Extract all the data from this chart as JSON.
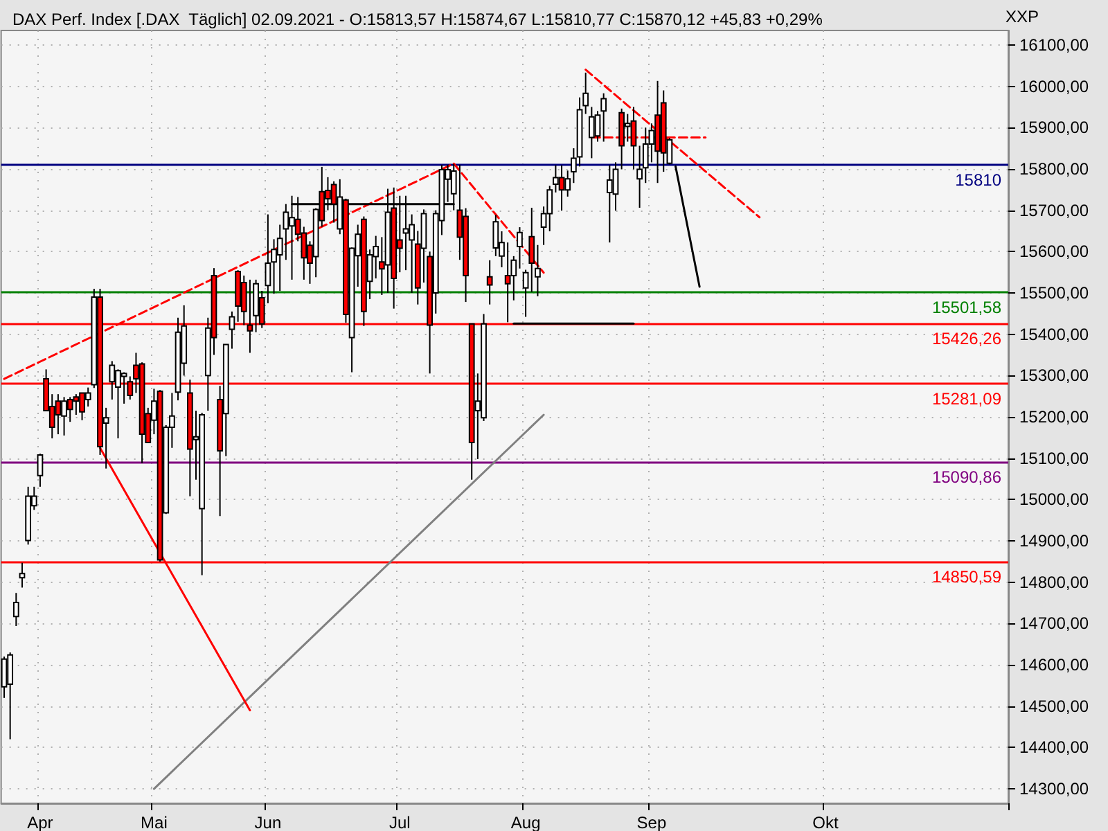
{
  "chart_data": {
    "type": "candlestick",
    "title": "DAX Perf. Index [.DAX  Täglich] 02.09.2021 - O:15813,57 H:15874,67 L:15810,77 C:15870,12 +45,83 +0,29%",
    "ylabel": "XXP",
    "categories": [
      null,
      null,
      null,
      null,
      null,
      null,
      "Apr",
      null,
      null,
      null,
      null,
      null,
      null,
      null,
      null,
      null,
      null,
      null,
      null,
      null,
      null,
      null,
      null,
      null,
      null,
      "Mai",
      null,
      null,
      null,
      null,
      null,
      null,
      null,
      null,
      null,
      null,
      null,
      null,
      null,
      null,
      null,
      null,
      null,
      null,
      "Jun",
      null,
      null,
      null,
      null,
      null,
      null,
      null,
      null,
      null,
      null,
      null,
      null,
      null,
      null,
      null,
      null,
      null,
      null,
      null,
      null,
      null,
      "Jul",
      null,
      null,
      null,
      null,
      null,
      null,
      null,
      null,
      null,
      null,
      null,
      null,
      null,
      null,
      null,
      null,
      null,
      null,
      null,
      null,
      "Aug",
      null,
      null,
      null,
      null,
      null,
      null,
      null,
      null,
      null,
      null,
      null,
      null,
      null,
      null,
      null,
      null,
      null,
      null,
      null,
      null,
      "Sep",
      null,
      null,
      null,
      null,
      null,
      null,
      null,
      null,
      null,
      null,
      null,
      null,
      null,
      null,
      null,
      null,
      null,
      null,
      null,
      null,
      null,
      null,
      null,
      null,
      null,
      null,
      null,
      null,
      "Okt",
      null,
      null,
      null,
      null,
      null,
      null,
      null,
      null,
      null,
      null,
      null,
      null,
      null,
      null,
      null,
      null,
      null,
      null,
      null,
      null,
      null,
      null,
      null,
      null,
      null,
      null,
      null,
      null,
      null,
      null
    ],
    "ohlc": [
      [
        14547,
        14620,
        14520,
        14614
      ],
      [
        14553,
        14630,
        14420,
        14624
      ],
      [
        14717,
        14774,
        14694,
        14751
      ],
      [
        14811,
        14847,
        14787,
        14821
      ],
      [
        14901,
        15031,
        14891,
        15008
      ],
      [
        14985,
        15031,
        14975,
        15008
      ],
      [
        15058,
        15111,
        15031,
        15108
      ],
      [
        15292,
        15315,
        15215,
        15215
      ],
      [
        15225,
        15255,
        15148,
        15175
      ],
      [
        15238,
        15255,
        15158,
        15205
      ],
      [
        15202,
        15248,
        15155,
        15238
      ],
      [
        15242,
        15248,
        15188,
        15218
      ],
      [
        15248,
        15255,
        15205,
        15238
      ],
      [
        15258,
        15258,
        15192,
        15212
      ],
      [
        15242,
        15271,
        15225,
        15258
      ],
      [
        15278,
        15510,
        15270,
        15490
      ],
      [
        15490,
        15510,
        15108,
        15128
      ],
      [
        15185,
        15222,
        15075,
        15198
      ],
      [
        15285,
        15335,
        15242,
        15325
      ],
      [
        15272,
        15315,
        15148,
        15312
      ],
      [
        15298,
        15308,
        15232,
        15305
      ],
      [
        15285,
        15298,
        15242,
        15252
      ],
      [
        15325,
        15355,
        15258,
        15292
      ],
      [
        15328,
        15332,
        15088,
        15158
      ],
      [
        15208,
        15222,
        15138,
        15138
      ],
      [
        15192,
        15268,
        15158,
        15238
      ],
      [
        15262,
        15265,
        14850,
        14854
      ],
      [
        14968,
        15180,
        14965,
        15175
      ],
      [
        15175,
        15258,
        15125,
        15202
      ],
      [
        15260,
        15440,
        15240,
        15405
      ],
      [
        15330,
        15470,
        15300,
        15420
      ],
      [
        15258,
        15290,
        15008,
        15122
      ],
      [
        15145,
        15215,
        15048,
        15152
      ],
      [
        14978,
        15210,
        14817,
        15205
      ],
      [
        15300,
        15440,
        15215,
        15415
      ],
      [
        15542,
        15560,
        15350,
        15392
      ],
      [
        15242,
        15275,
        14960,
        15118
      ],
      [
        15208,
        15375,
        15105,
        15375
      ],
      [
        15412,
        15455,
        15365,
        15442
      ],
      [
        15552,
        15555,
        15430,
        15468
      ],
      [
        15525,
        15542,
        15422,
        15455
      ],
      [
        15422,
        15532,
        15355,
        15408
      ],
      [
        15445,
        15532,
        15405,
        15522
      ],
      [
        15488,
        15505,
        15415,
        15425
      ],
      [
        15518,
        15690,
        15475,
        15572
      ],
      [
        15575,
        15630,
        15498,
        15605
      ],
      [
        15592,
        15665,
        15505,
        15632
      ],
      [
        15655,
        15715,
        15580,
        15695
      ],
      [
        15662,
        15735,
        15532,
        15682
      ],
      [
        15678,
        15732,
        15625,
        15642
      ],
      [
        15645,
        15660,
        15532,
        15585
      ],
      [
        15615,
        15625,
        15522,
        15572
      ],
      [
        15588,
        15705,
        15538,
        15702
      ],
      [
        15745,
        15805,
        15660,
        15675
      ],
      [
        15748,
        15780,
        15700,
        15728
      ],
      [
        15762,
        15770,
        15670,
        15715
      ],
      [
        15655,
        15775,
        15642,
        15732
      ],
      [
        15725,
        15728,
        15428,
        15448
      ],
      [
        15392,
        15610,
        15308,
        15608
      ],
      [
        15590,
        15665,
        15515,
        15642
      ],
      [
        15678,
        15685,
        15420,
        15455
      ],
      [
        15528,
        15605,
        15485,
        15592
      ],
      [
        15588,
        15638,
        15535,
        15612
      ],
      [
        15575,
        15635,
        15495,
        15558
      ],
      [
        15568,
        15752,
        15500,
        15695
      ],
      [
        15705,
        15755,
        15462,
        15535
      ],
      [
        15628,
        15735,
        15550,
        15608
      ],
      [
        15645,
        15735,
        15555,
        15655
      ],
      [
        15628,
        15690,
        15500,
        15665
      ],
      [
        15618,
        15650,
        15472,
        15512
      ],
      [
        15608,
        15702,
        15525,
        15692
      ],
      [
        15588,
        15600,
        15305,
        15422
      ],
      [
        15500,
        15700,
        15450,
        15692
      ],
      [
        15675,
        15810,
        15640,
        15798
      ],
      [
        15775,
        15810,
        15720,
        15798
      ],
      [
        15740,
        15812,
        15700,
        15795
      ],
      [
        15700,
        15810,
        15580,
        15635
      ],
      [
        15685,
        15705,
        15478,
        15542
      ],
      [
        15425,
        15425,
        15048,
        15138
      ],
      [
        15215,
        15305,
        15098,
        15238
      ],
      [
        15198,
        15449,
        15190,
        15425
      ],
      [
        15539,
        15579,
        15472,
        15519
      ],
      [
        15609,
        15689,
        15589,
        15672
      ],
      [
        15589,
        15649,
        15562,
        15622
      ],
      [
        15542,
        15622,
        15429,
        15522
      ],
      [
        15542,
        15589,
        15482,
        15579
      ],
      [
        15612,
        15659,
        15559,
        15646
      ],
      [
        15512,
        15556,
        15442,
        15549
      ],
      [
        15636,
        15706,
        15502,
        15572
      ],
      [
        15539,
        15616,
        15492,
        15559
      ],
      [
        15659,
        15709,
        15616,
        15692
      ],
      [
        15692,
        15759,
        15649,
        15749
      ],
      [
        15763,
        15809,
        15743,
        15779
      ],
      [
        15779,
        15809,
        15699,
        15749
      ],
      [
        15749,
        15796,
        15733,
        15776
      ],
      [
        15793,
        15850,
        15766,
        15826
      ],
      [
        15829,
        15973,
        15806,
        15943
      ],
      [
        15953,
        16033,
        15933,
        15983
      ],
      [
        15876,
        15950,
        15826,
        15926
      ],
      [
        15880,
        15940,
        15866,
        15930
      ],
      [
        15940,
        15983,
        15866,
        15970
      ],
      [
        15743,
        15809,
        15622,
        15773
      ],
      [
        15739,
        15816,
        15699,
        15799
      ],
      [
        15936,
        15946,
        15799,
        15856
      ],
      [
        15903,
        15933,
        15866,
        15910
      ],
      [
        15916,
        15950,
        15799,
        15856
      ],
      [
        15776,
        15856,
        15706,
        15799
      ],
      [
        15803,
        15900,
        15766,
        15860
      ],
      [
        15860,
        15910,
        15816,
        15893
      ],
      [
        15930,
        16013,
        15766,
        15843
      ],
      [
        15960,
        15990,
        15793,
        15839
      ],
      [
        15813.57,
        15874.67,
        15810.77,
        15870.12
      ],
      null,
      null,
      null,
      null,
      null,
      null,
      null,
      null,
      null,
      null,
      null,
      null,
      null,
      null,
      null,
      null,
      null,
      null,
      null,
      null,
      null,
      null,
      null,
      null,
      null,
      null,
      null,
      null,
      null,
      null,
      null,
      null,
      null,
      null,
      null,
      null,
      null,
      null,
      null,
      null,
      null,
      null,
      null,
      null,
      null,
      null,
      null,
      null,
      null,
      null,
      null,
      null,
      null,
      null,
      null,
      null
    ],
    "series": [
      {
        "type": "line",
        "color": "#808080",
        "values": [
          null,
          null,
          null,
          null,
          null,
          null,
          null,
          null,
          null,
          null,
          null,
          null,
          null,
          null,
          null,
          null,
          null,
          null,
          null,
          null,
          null,
          null,
          null,
          null,
          null,
          14300,
          null,
          null,
          null,
          null,
          null,
          null,
          null,
          null,
          null,
          null,
          null,
          null,
          null,
          null,
          null,
          null,
          null,
          null,
          null,
          null,
          null,
          null,
          null,
          null,
          null,
          null,
          null,
          null,
          null,
          null,
          null,
          null,
          null,
          null,
          null,
          null,
          null,
          null,
          null,
          null,
          null,
          null,
          null,
          null,
          null,
          null,
          null,
          null,
          null,
          null,
          null,
          null,
          null,
          null,
          null,
          null,
          null,
          null,
          null,
          null,
          null,
          null,
          null,
          null,
          15205,
          null,
          null,
          null,
          null,
          null,
          null,
          null,
          null,
          null,
          null,
          null,
          null,
          null,
          null,
          null,
          null,
          null,
          null,
          null,
          null,
          null,
          null,
          null,
          null,
          null,
          null,
          null,
          null,
          null,
          null,
          null,
          null,
          null,
          null,
          null,
          null,
          null,
          null,
          null,
          null,
          null,
          null,
          null,
          null,
          null,
          null,
          null,
          null,
          null,
          null,
          null,
          null,
          null,
          null,
          null,
          null,
          null,
          null,
          null,
          null,
          null,
          null,
          null,
          null,
          null,
          null,
          null,
          null,
          null,
          null,
          null,
          null,
          null,
          null,
          null,
          null,
          null
        ]
      },
      {
        "type": "line",
        "color": "#ff0000",
        "values": [
          null,
          null,
          null,
          null,
          null,
          null,
          null,
          null,
          null,
          null,
          null,
          null,
          null,
          null,
          null,
          null,
          15125,
          null,
          null,
          null,
          null,
          null,
          null,
          null,
          null,
          null,
          null,
          null,
          null,
          null,
          null,
          null,
          null,
          null,
          null,
          null,
          null,
          null,
          null,
          null,
          null,
          14490,
          null,
          null,
          null,
          null,
          null,
          null,
          null,
          null,
          null,
          null,
          null,
          null,
          null,
          null,
          null,
          null,
          null,
          null,
          null,
          null,
          null,
          null,
          null,
          null,
          null,
          null,
          null,
          null,
          null,
          null,
          null,
          null,
          null,
          null,
          null,
          null,
          null,
          null,
          null,
          null,
          null,
          null,
          null,
          null,
          null,
          null,
          null,
          null,
          null,
          null,
          null,
          null,
          null,
          null,
          null,
          null,
          null,
          null,
          null,
          null,
          null,
          null,
          null,
          null,
          null,
          null,
          null,
          null,
          null,
          null,
          null,
          null,
          null,
          null,
          null,
          null,
          null,
          null,
          null,
          null,
          null,
          null,
          null,
          null,
          null,
          null,
          null,
          null,
          null,
          null,
          null,
          null,
          null,
          null,
          null,
          null,
          null,
          null,
          null,
          null,
          null,
          null,
          null,
          null,
          null,
          null,
          null,
          null,
          null,
          null,
          null,
          null,
          null,
          null,
          null,
          null,
          null,
          null,
          null,
          null,
          null,
          null,
          null,
          null,
          null,
          null
        ]
      },
      {
        "type": "line",
        "color": "#ff0000",
        "line_style": "dashed",
        "values": [
          15292,
          null,
          null,
          null,
          null,
          null,
          null,
          null,
          null,
          null,
          null,
          null,
          null,
          null,
          null,
          null,
          null,
          null,
          null,
          null,
          null,
          null,
          null,
          null,
          null,
          null,
          null,
          null,
          null,
          null,
          null,
          null,
          null,
          null,
          null,
          null,
          null,
          null,
          null,
          null,
          null,
          null,
          null,
          null,
          null,
          null,
          null,
          null,
          null,
          null,
          null,
          null,
          null,
          null,
          null,
          null,
          null,
          null,
          null,
          null,
          null,
          null,
          null,
          null,
          null,
          null,
          null,
          null,
          null,
          null,
          null,
          null,
          null,
          null,
          null,
          15813,
          null,
          null,
          null,
          null,
          null,
          null,
          null,
          null,
          null,
          null,
          null,
          null,
          null,
          null,
          15549,
          null,
          null,
          null,
          null,
          null,
          null,
          null,
          null,
          null,
          null,
          null,
          null,
          null,
          null,
          null,
          null,
          null,
          null,
          null,
          null,
          null,
          null,
          null,
          null,
          null,
          null,
          null,
          null,
          null,
          null,
          null,
          null,
          null,
          null,
          null,
          null,
          null,
          null,
          null,
          null,
          null,
          null,
          null,
          null,
          null,
          null,
          null,
          null,
          null,
          null,
          null,
          null,
          null,
          null,
          null,
          null,
          null,
          null,
          null,
          null,
          null,
          null,
          null,
          null,
          null,
          null,
          null,
          null,
          null,
          null,
          null,
          null,
          null,
          null,
          null,
          null,
          null
        ]
      },
      {
        "type": "line",
        "color": "#ff0000",
        "line_style": "dashed",
        "values": [
          null,
          null,
          null,
          null,
          null,
          null,
          null,
          null,
          null,
          null,
          null,
          null,
          null,
          null,
          null,
          null,
          null,
          null,
          null,
          null,
          null,
          null,
          null,
          null,
          null,
          null,
          null,
          null,
          null,
          null,
          null,
          null,
          null,
          null,
          null,
          null,
          null,
          null,
          null,
          null,
          null,
          null,
          null,
          null,
          null,
          null,
          null,
          null,
          null,
          null,
          null,
          null,
          null,
          null,
          null,
          null,
          null,
          null,
          null,
          null,
          null,
          null,
          null,
          null,
          null,
          null,
          null,
          null,
          null,
          null,
          null,
          null,
          null,
          null,
          null,
          null,
          null,
          null,
          null,
          null,
          null,
          null,
          null,
          null,
          null,
          null,
          null,
          null,
          null,
          null,
          null,
          null,
          null,
          null,
          null,
          null,
          null,
          16040,
          null,
          null,
          null,
          null,
          null,
          null,
          null,
          null,
          null,
          null,
          null,
          null,
          null,
          null,
          null,
          null,
          null,
          null,
          null,
          null,
          null,
          null,
          null,
          null,
          null,
          null,
          null,
          null,
          15683,
          null,
          null,
          null,
          null,
          null,
          null,
          null,
          null,
          null,
          null,
          null,
          null,
          null,
          null,
          null,
          null,
          null,
          null,
          null,
          null,
          null,
          null,
          null,
          null,
          null,
          null,
          null,
          null,
          null,
          null,
          null,
          null,
          null,
          null,
          null,
          null,
          null,
          null,
          null,
          null,
          null
        ]
      },
      {
        "type": "line",
        "color": "#000000",
        "values": [
          null,
          null,
          null,
          null,
          null,
          null,
          null,
          null,
          null,
          null,
          null,
          null,
          null,
          null,
          null,
          null,
          null,
          null,
          null,
          null,
          null,
          null,
          null,
          null,
          null,
          null,
          null,
          null,
          null,
          null,
          null,
          null,
          null,
          null,
          null,
          null,
          null,
          null,
          null,
          null,
          null,
          null,
          null,
          null,
          null,
          null,
          null,
          null,
          null,
          null,
          null,
          null,
          null,
          null,
          null,
          null,
          null,
          null,
          null,
          null,
          null,
          null,
          null,
          null,
          null,
          null,
          null,
          null,
          null,
          null,
          null,
          null,
          null,
          null,
          null,
          null,
          null,
          null,
          null,
          null,
          null,
          null,
          null,
          null,
          null,
          null,
          null,
          null,
          null,
          null,
          null,
          null,
          null,
          null,
          null,
          null,
          null,
          null,
          null,
          null,
          null,
          null,
          null,
          null,
          null,
          null,
          null,
          null,
          null,
          null,
          null,
          null,
          15806,
          null,
          null,
          null,
          15515,
          null,
          null,
          null,
          null,
          null,
          null,
          null,
          null,
          null,
          null,
          null,
          null,
          null,
          null,
          null,
          null,
          null,
          null,
          null,
          null,
          null,
          null,
          null,
          null,
          null,
          null,
          null,
          null,
          null,
          null,
          null,
          null,
          null,
          null,
          null,
          null,
          null,
          null,
          null,
          null,
          null,
          null,
          null,
          null,
          null,
          null,
          null,
          null,
          null,
          null,
          null
        ]
      },
      {
        "type": "line",
        "color": "#000000",
        "values": [
          null,
          null,
          null,
          null,
          null,
          null,
          null,
          null,
          null,
          null,
          null,
          null,
          null,
          null,
          null,
          null,
          null,
          null,
          null,
          null,
          null,
          null,
          null,
          null,
          null,
          null,
          null,
          null,
          null,
          null,
          null,
          null,
          null,
          null,
          null,
          null,
          null,
          null,
          null,
          null,
          null,
          null,
          null,
          null,
          null,
          null,
          null,
          null,
          15715,
          null,
          null,
          null,
          null,
          null,
          null,
          null,
          null,
          null,
          null,
          null,
          null,
          null,
          null,
          null,
          null,
          null,
          null,
          null,
          null,
          null,
          null,
          null,
          null,
          null,
          null,
          15715,
          null,
          null,
          null,
          null,
          null,
          null,
          null,
          null,
          null,
          null,
          null,
          null,
          null,
          null,
          null,
          null,
          null,
          null,
          null,
          null,
          null,
          null,
          null,
          null,
          null,
          null,
          null,
          null,
          null,
          null,
          null,
          null,
          null,
          null,
          null,
          null,
          null,
          null,
          null,
          null,
          null,
          null,
          null,
          null,
          null,
          null,
          null,
          null,
          null,
          null,
          null,
          null,
          null,
          null,
          null,
          null,
          null,
          null,
          null,
          null,
          null,
          null,
          null,
          null,
          null,
          null,
          null,
          null,
          null,
          null,
          null,
          null,
          null,
          null,
          null,
          null,
          null,
          null,
          null,
          null,
          null,
          null,
          null,
          null,
          null,
          null,
          null,
          null,
          null,
          null,
          null,
          null
        ]
      },
      {
        "type": "line",
        "color": "#000000",
        "values": [
          null,
          null,
          null,
          null,
          null,
          null,
          null,
          null,
          null,
          null,
          null,
          null,
          null,
          null,
          null,
          null,
          null,
          null,
          null,
          null,
          null,
          null,
          null,
          null,
          null,
          null,
          null,
          null,
          null,
          null,
          null,
          null,
          null,
          null,
          null,
          null,
          null,
          null,
          null,
          null,
          null,
          null,
          null,
          null,
          null,
          null,
          null,
          null,
          null,
          null,
          null,
          null,
          null,
          null,
          null,
          null,
          null,
          null,
          null,
          null,
          null,
          null,
          null,
          null,
          null,
          null,
          null,
          null,
          null,
          null,
          null,
          null,
          null,
          null,
          null,
          null,
          null,
          null,
          null,
          null,
          null,
          null,
          null,
          null,
          null,
          15426,
          null,
          null,
          null,
          null,
          null,
          null,
          null,
          null,
          null,
          null,
          null,
          null,
          null,
          null,
          null,
          null,
          null,
          null,
          null,
          15426,
          null,
          null,
          null,
          null,
          null,
          null,
          null,
          null,
          null,
          null,
          null,
          null,
          null,
          null,
          null,
          null,
          null,
          null,
          null,
          null,
          null,
          null,
          null,
          null,
          null,
          null,
          null,
          null,
          null,
          null,
          null,
          null,
          null,
          null,
          null,
          null,
          null,
          null,
          null,
          null,
          null,
          null,
          null,
          null,
          null,
          null,
          null,
          null,
          null,
          null,
          null,
          null,
          null,
          null,
          null,
          null,
          null,
          null,
          null,
          null,
          null,
          null
        ]
      },
      {
        "type": "line",
        "color": "#ff0000",
        "line_style": "dashed",
        "values": [
          null,
          null,
          null,
          null,
          null,
          null,
          null,
          null,
          null,
          null,
          null,
          null,
          null,
          null,
          null,
          null,
          null,
          null,
          null,
          null,
          null,
          null,
          null,
          null,
          null,
          null,
          null,
          null,
          null,
          null,
          null,
          null,
          null,
          null,
          null,
          null,
          null,
          null,
          null,
          null,
          null,
          null,
          null,
          null,
          null,
          null,
          null,
          null,
          null,
          null,
          null,
          null,
          null,
          null,
          null,
          null,
          null,
          null,
          null,
          null,
          null,
          null,
          null,
          null,
          null,
          null,
          null,
          null,
          null,
          null,
          null,
          null,
          null,
          null,
          null,
          null,
          null,
          null,
          null,
          null,
          null,
          null,
          null,
          null,
          null,
          null,
          null,
          null,
          null,
          null,
          null,
          null,
          null,
          null,
          null,
          null,
          null,
          null,
          15876,
          null,
          null,
          null,
          null,
          null,
          null,
          null,
          null,
          null,
          null,
          null,
          null,
          null,
          null,
          null,
          null,
          null,
          null,
          15876,
          null,
          null,
          null,
          null,
          null,
          null,
          null,
          null,
          null,
          null,
          null,
          null,
          null,
          null,
          null,
          null,
          null,
          null,
          null,
          null,
          null,
          null,
          null,
          null,
          null,
          null,
          null,
          null,
          null,
          null,
          null,
          null,
          null,
          null,
          null,
          null,
          null,
          null,
          null,
          null,
          null,
          null,
          null,
          null,
          null,
          null,
          null,
          null,
          null,
          null
        ]
      }
    ],
    "ref_lines": [
      {
        "axis": "y",
        "value": 15810,
        "label": "15810",
        "color": "#000080"
      },
      {
        "axis": "y",
        "value": 15501.58,
        "label": "15501,58",
        "color": "#008000"
      },
      {
        "axis": "y",
        "value": 15426.26,
        "label": "15426,26",
        "color": "#ff0000"
      },
      {
        "axis": "y",
        "value": 15281.09,
        "label": "15281,09",
        "color": "#ff0000"
      },
      {
        "axis": "y",
        "value": 15090.86,
        "label": "15090,86",
        "color": "#800080"
      },
      {
        "axis": "y",
        "value": 14850.59,
        "label": "14850,59",
        "color": "#ff0000"
      }
    ],
    "ylim": [
      14265,
      16135
    ],
    "yticks": [
      {
        "value": 14300,
        "label": "14300,00"
      },
      {
        "value": 14400,
        "label": "14400,00"
      },
      {
        "value": 14500,
        "label": "14500,00"
      },
      {
        "value": 14600,
        "label": "14600,00"
      },
      {
        "value": 14700,
        "label": "14700,00"
      },
      {
        "value": 14800,
        "label": "14800,00"
      },
      {
        "value": 14900,
        "label": "14900,00"
      },
      {
        "value": 15000,
        "label": "15000,00"
      },
      {
        "value": 15100,
        "label": "15100,00"
      },
      {
        "value": 15200,
        "label": "15200,00"
      },
      {
        "value": 15300,
        "label": "15300,00"
      },
      {
        "value": 15400,
        "label": "15400,00"
      },
      {
        "value": 15500,
        "label": "15500,00"
      },
      {
        "value": 15600,
        "label": "15600,00"
      },
      {
        "value": 15700,
        "label": "15700,00"
      },
      {
        "value": 15800,
        "label": "15800,00"
      },
      {
        "value": 15900,
        "label": "15900,00"
      },
      {
        "value": 16000,
        "label": "16000,00"
      },
      {
        "value": 16100,
        "label": "16100,00"
      }
    ],
    "grid": true
  }
}
